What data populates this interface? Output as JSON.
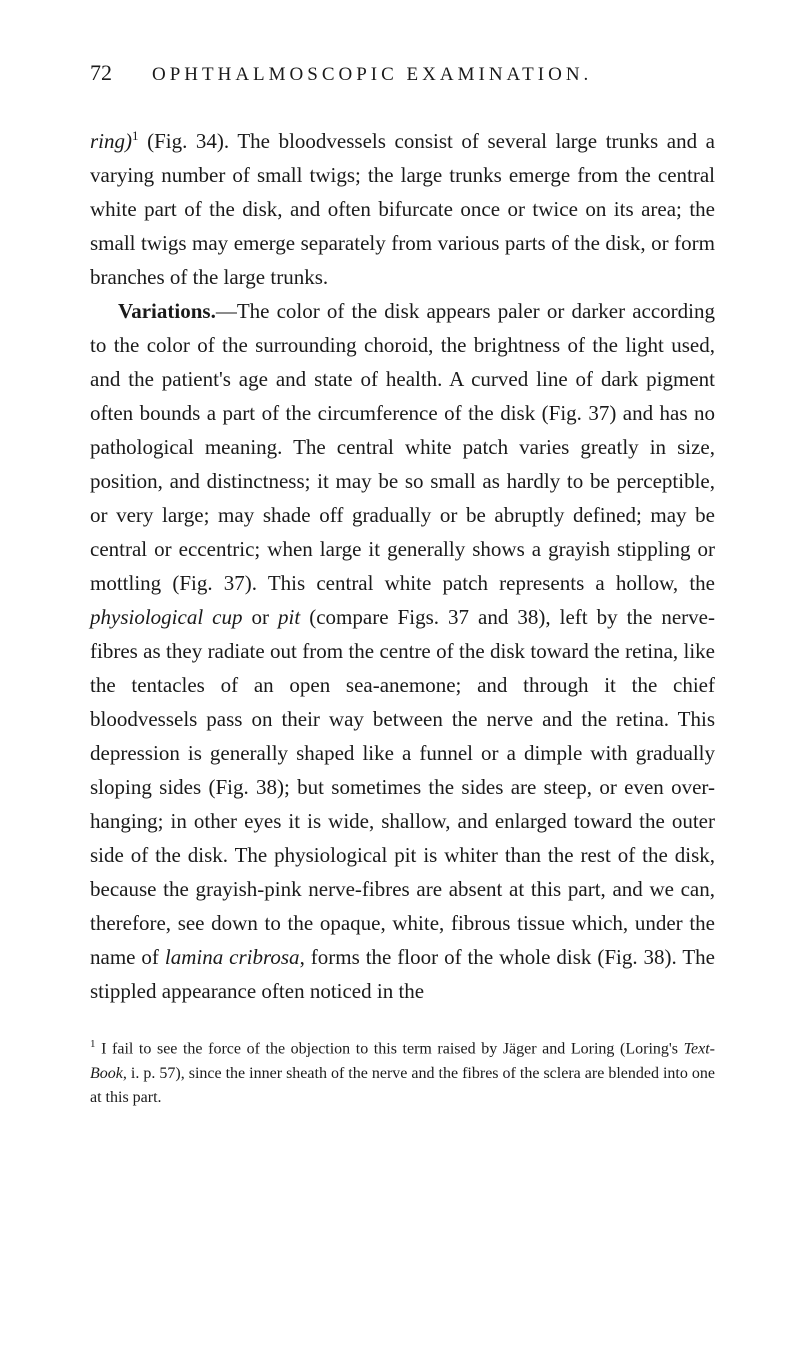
{
  "header": {
    "page_number": "72",
    "chapter_title": "OPHTHALMOSCOPIC EXAMINATION."
  },
  "paragraphs": {
    "p1_part1": "ring)",
    "p1_sup": "1",
    "p1_part2": " (Fig. 34). The bloodvessels consist of several large trunks and a varying number of small twigs; the large trunks emerge from the central white part of the disk, and often bifurcate once or twice on its area; the small twigs may emerge separately from various parts of the disk, or form branches of the large trunks.",
    "p2_bold": "Variations.",
    "p2_part1": "—The color of the disk appears paler or darker according to the color of the surrounding choroid, the brightness of the light used, and the patient's age and state of health. A curved line of dark pigment often bounds a part of the circumference of the disk (Fig. 37) and has no pathological meaning. The central white patch varies greatly in size, position, and distinctness; it may be so small as hardly to be perceptible, or very large; may shade off gradually or be abruptly defined; may be central or eccentric; when large it generally shows a grayish stippling or mottling (Fig. 37). This central white patch represents a hollow, the ",
    "p2_italic1": "physiological cup",
    "p2_part2": " or ",
    "p2_italic2": "pit",
    "p2_part3": " (compare Figs. 37 and 38), left by the nerve-fibres as they radiate out from the centre of the disk toward the retina, like the tentacles of an open sea-anemone; and through it the chief bloodvessels pass on their way between the nerve and the retina. This depression is generally shaped like a funnel or a dimple with gradually sloping sides (Fig. 38); but sometimes the sides are steep, or even over-hanging; in other eyes it is wide, shallow, and enlarged toward the outer side of the disk. The physiological pit is whiter than the rest of the disk, because the grayish-pink nerve-fibres are absent at this part, and we can, therefore, see down to the opaque, white, fibrous tissue which, under the name of ",
    "p2_italic3": "lamina cribrosa",
    "p2_part4": ", forms the floor of the whole disk (Fig. 38). The stippled appearance often noticed in the"
  },
  "footnote": {
    "sup": "1",
    "part1": " I fail to see the force of the objection to this term raised by Jäger and Loring (Loring's ",
    "italic": "Text-Book",
    "part2": ", i. p. 57), since the inner sheath of the nerve and the fibres of the sclera are blended into one at this part."
  }
}
